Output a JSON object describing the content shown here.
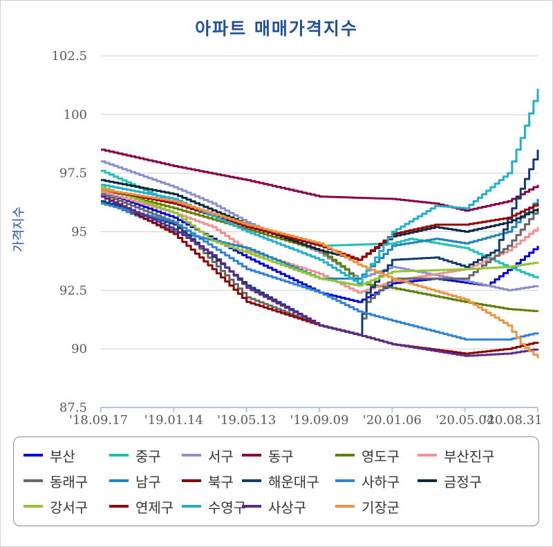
{
  "chart_data": {
    "type": "line",
    "title": "아파트 매매가격지수",
    "xlabel": "",
    "ylabel": "가격지수",
    "ylim": [
      87.5,
      103.0
    ],
    "yticks": [
      87.5,
      90,
      92.5,
      95,
      97.5,
      100,
      102.5
    ],
    "ytick_labels": [
      "87.5",
      "90",
      "92.5",
      "95",
      "97.5",
      "100",
      "102.5"
    ],
    "x_count": 103,
    "xticks": [
      0,
      17,
      34,
      51,
      68,
      85,
      102
    ],
    "xtick_labels": [
      "'18.09.17",
      "'19.01.14",
      "'19.05.13",
      "'19.09.09",
      "'20.01.06",
      "'20.05.04",
      "'20.08.31"
    ],
    "grid": true,
    "legend_position": "bottom",
    "series": [
      {
        "name": "부산",
        "color": "#0000e0",
        "points": [
          [
            0,
            96.7
          ],
          [
            17,
            95.6
          ],
          [
            34,
            93.9
          ],
          [
            51,
            92.4
          ],
          [
            60,
            92.0
          ],
          [
            68,
            92.8
          ],
          [
            78,
            93.0
          ],
          [
            90,
            92.7
          ],
          [
            96,
            93.5
          ],
          [
            102,
            94.4
          ]
        ]
      },
      {
        "name": "중구",
        "color": "#1dc0b4",
        "points": [
          [
            0,
            97.6
          ],
          [
            17,
            96.2
          ],
          [
            34,
            95.3
          ],
          [
            51,
            94.4
          ],
          [
            68,
            94.5
          ],
          [
            72,
            94.7
          ],
          [
            85,
            94.3
          ],
          [
            95,
            93.5
          ],
          [
            102,
            93.0
          ]
        ]
      },
      {
        "name": "서구",
        "color": "#8a8fd0",
        "points": [
          [
            0,
            98.0
          ],
          [
            17,
            96.9
          ],
          [
            26,
            96.2
          ],
          [
            34,
            95.4
          ],
          [
            51,
            94.1
          ],
          [
            60,
            93.0
          ],
          [
            68,
            93.5
          ],
          [
            85,
            92.9
          ],
          [
            95,
            92.5
          ],
          [
            102,
            92.7
          ]
        ]
      },
      {
        "name": "동구",
        "color": "#8b0045",
        "points": [
          [
            0,
            98.5
          ],
          [
            17,
            97.8
          ],
          [
            34,
            97.2
          ],
          [
            51,
            96.5
          ],
          [
            68,
            96.4
          ],
          [
            78,
            96.2
          ],
          [
            85,
            95.9
          ],
          [
            95,
            96.3
          ],
          [
            102,
            97.0
          ]
        ]
      },
      {
        "name": "영도구",
        "color": "#5f7f00",
        "points": [
          [
            0,
            96.8
          ],
          [
            17,
            96.0
          ],
          [
            34,
            95.1
          ],
          [
            51,
            94.2
          ],
          [
            57,
            93.4
          ],
          [
            60,
            92.8
          ],
          [
            68,
            92.6
          ],
          [
            85,
            92.0
          ],
          [
            95,
            91.7
          ],
          [
            102,
            91.6
          ]
        ]
      },
      {
        "name": "부산진구",
        "color": "#f09090",
        "points": [
          [
            0,
            96.7
          ],
          [
            17,
            95.8
          ],
          [
            26,
            95.2
          ],
          [
            34,
            94.2
          ],
          [
            51,
            93.2
          ],
          [
            60,
            92.4
          ],
          [
            68,
            92.9
          ],
          [
            85,
            93.4
          ],
          [
            95,
            94.2
          ],
          [
            102,
            95.2
          ]
        ]
      },
      {
        "name": "동래구",
        "color": "#666666",
        "points": [
          [
            0,
            96.6
          ],
          [
            17,
            95.4
          ],
          [
            34,
            92.2
          ],
          [
            51,
            91.0
          ],
          [
            60,
            90.6
          ],
          [
            62,
            92.0
          ],
          [
            68,
            93.0
          ],
          [
            85,
            93.0
          ],
          [
            95,
            94.4
          ],
          [
            102,
            96.0
          ]
        ]
      },
      {
        "name": "남구",
        "color": "#1f85c0",
        "points": [
          [
            0,
            96.3
          ],
          [
            17,
            95.0
          ],
          [
            34,
            94.3
          ],
          [
            51,
            93.0
          ],
          [
            60,
            93.0
          ],
          [
            68,
            94.4
          ],
          [
            78,
            94.7
          ],
          [
            85,
            94.5
          ],
          [
            95,
            95.0
          ],
          [
            102,
            96.4
          ]
        ]
      },
      {
        "name": "북구",
        "color": "#8b0000",
        "points": [
          [
            0,
            96.5
          ],
          [
            17,
            94.9
          ],
          [
            26,
            93.4
          ],
          [
            34,
            92.0
          ],
          [
            51,
            91.0
          ],
          [
            60,
            90.6
          ],
          [
            68,
            90.2
          ],
          [
            85,
            89.8
          ],
          [
            95,
            90.0
          ],
          [
            102,
            90.3
          ]
        ]
      },
      {
        "name": "해운대구",
        "color": "#0e3c6e",
        "points": [
          [
            0,
            96.3
          ],
          [
            17,
            95.3
          ],
          [
            34,
            92.7
          ],
          [
            51,
            91.0
          ],
          [
            60,
            90.6
          ],
          [
            62,
            92.4
          ],
          [
            68,
            93.8
          ],
          [
            78,
            93.9
          ],
          [
            85,
            93.5
          ],
          [
            92,
            94.2
          ],
          [
            96,
            96.0
          ],
          [
            102,
            98.5
          ]
        ]
      },
      {
        "name": "사하구",
        "color": "#2e80d8",
        "points": [
          [
            0,
            96.2
          ],
          [
            17,
            95.4
          ],
          [
            34,
            93.4
          ],
          [
            51,
            92.4
          ],
          [
            60,
            91.6
          ],
          [
            68,
            91.2
          ],
          [
            85,
            90.4
          ],
          [
            95,
            90.4
          ],
          [
            102,
            90.7
          ]
        ]
      },
      {
        "name": "금정구",
        "color": "#0a2840",
        "points": [
          [
            0,
            97.2
          ],
          [
            17,
            96.6
          ],
          [
            34,
            95.3
          ],
          [
            51,
            94.2
          ],
          [
            60,
            93.8
          ],
          [
            68,
            94.8
          ],
          [
            78,
            95.2
          ],
          [
            85,
            95.0
          ],
          [
            95,
            95.4
          ],
          [
            102,
            96.0
          ]
        ]
      },
      {
        "name": "강서구",
        "color": "#90c430",
        "points": [
          [
            0,
            96.9
          ],
          [
            17,
            95.8
          ],
          [
            26,
            94.6
          ],
          [
            34,
            94.1
          ],
          [
            51,
            93.0
          ],
          [
            60,
            92.7
          ],
          [
            68,
            93.3
          ],
          [
            85,
            93.4
          ],
          [
            95,
            93.5
          ],
          [
            102,
            93.7
          ]
        ]
      },
      {
        "name": "연제구",
        "color": "#990000",
        "points": [
          [
            0,
            96.8
          ],
          [
            17,
            96.2
          ],
          [
            34,
            95.2
          ],
          [
            51,
            94.4
          ],
          [
            60,
            93.8
          ],
          [
            68,
            94.9
          ],
          [
            78,
            95.3
          ],
          [
            85,
            95.3
          ],
          [
            95,
            95.6
          ],
          [
            102,
            96.2
          ]
        ]
      },
      {
        "name": "수영구",
        "color": "#1fb0d0",
        "points": [
          [
            0,
            97.0
          ],
          [
            17,
            96.4
          ],
          [
            34,
            95.0
          ],
          [
            51,
            93.8
          ],
          [
            60,
            92.8
          ],
          [
            68,
            95.0
          ],
          [
            78,
            96.1
          ],
          [
            85,
            96.0
          ],
          [
            95,
            97.5
          ],
          [
            98,
            99.0
          ],
          [
            102,
            101.1
          ]
        ]
      },
      {
        "name": "사상구",
        "color": "#5a2a8a",
        "points": [
          [
            0,
            96.5
          ],
          [
            17,
            95.1
          ],
          [
            26,
            94.0
          ],
          [
            34,
            92.6
          ],
          [
            51,
            91.0
          ],
          [
            60,
            90.6
          ],
          [
            68,
            90.2
          ],
          [
            85,
            89.7
          ],
          [
            95,
            89.8
          ],
          [
            102,
            90.0
          ]
        ]
      },
      {
        "name": "기장군",
        "color": "#f0913d",
        "points": [
          [
            0,
            96.8
          ],
          [
            17,
            96.3
          ],
          [
            34,
            95.3
          ],
          [
            51,
            94.5
          ],
          [
            60,
            93.6
          ],
          [
            68,
            93.0
          ],
          [
            85,
            92.1
          ],
          [
            95,
            91.0
          ],
          [
            98,
            90.2
          ],
          [
            102,
            89.6
          ]
        ]
      }
    ]
  }
}
